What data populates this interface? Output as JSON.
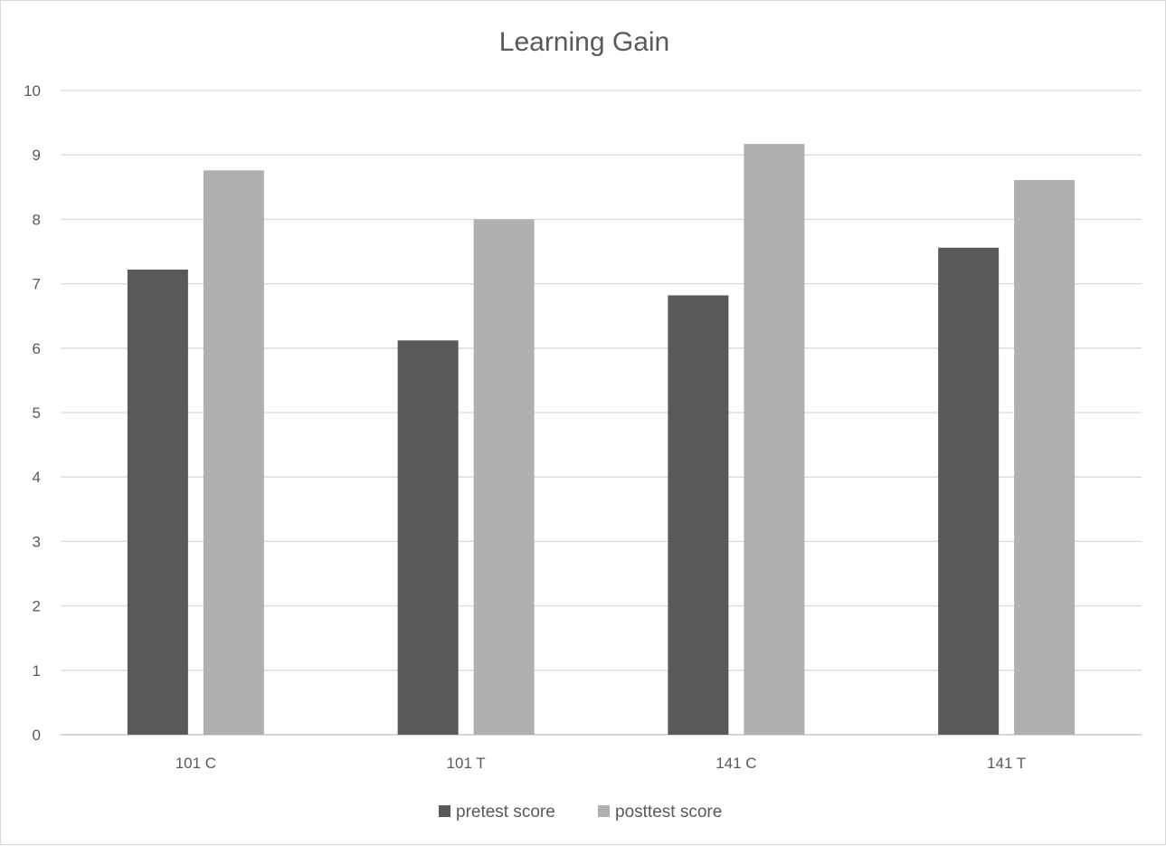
{
  "chart_data": {
    "type": "bar",
    "title": "Learning Gain",
    "xlabel": "",
    "ylabel": "",
    "categories": [
      "101 C",
      "101 T",
      "141 C",
      "141 T"
    ],
    "series": [
      {
        "name": "pretest score",
        "values": [
          7.22,
          6.12,
          6.82,
          7.56
        ],
        "color": "#595959"
      },
      {
        "name": "posttest score",
        "values": [
          8.76,
          8.0,
          9.17,
          8.61
        ],
        "color": "#b0b0b0"
      }
    ],
    "ylim": [
      0,
      10
    ],
    "yticks": [
      "0",
      "1",
      "2",
      "3",
      "4",
      "5",
      "6",
      "7",
      "8",
      "9",
      "10"
    ],
    "grid": true,
    "legend_position": "bottom"
  }
}
